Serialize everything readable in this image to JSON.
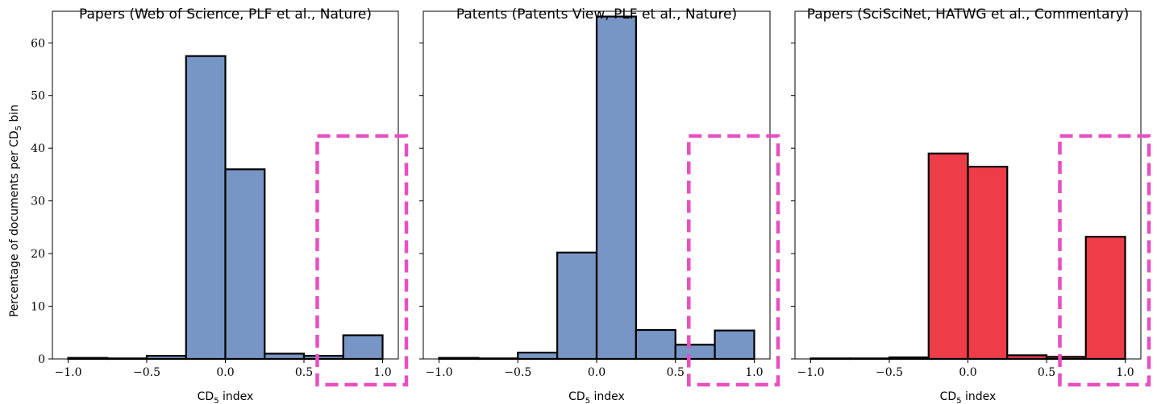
{
  "figure": {
    "ylabel": "Percentage of documents per CD",
    "ylabel_sub": "5",
    "ylabel_tail": " bin",
    "xlabel": "CD",
    "xlabel_sub": "5",
    "xlabel_tail": " index"
  },
  "chart_data": [
    {
      "type": "bar",
      "title": "Papers (Web of Science, PLF et al., Nature)",
      "bin_edges": [
        -1.0,
        -0.75,
        -0.5,
        -0.25,
        0.0,
        0.25,
        0.5,
        0.75,
        1.0
      ],
      "values": [
        0.2,
        0.1,
        0.6,
        57.5,
        36.0,
        1.0,
        0.6,
        4.5
      ],
      "color": "#7896c5",
      "xlim": [
        -1.1,
        1.1
      ],
      "ylim": [
        0,
        66
      ],
      "xticks": [
        -1.0,
        -0.5,
        0.0,
        0.5,
        1.0
      ],
      "xtick_labels": [
        "−1.0",
        "−0.5",
        "0.0",
        "0.5",
        "1.0"
      ],
      "yticks": [
        0,
        10,
        20,
        30,
        40,
        50,
        60
      ],
      "ytick_labels": [
        "0",
        "10",
        "20",
        "30",
        "40",
        "50",
        "60"
      ],
      "highlight": {
        "x_from": 0.6,
        "color": "#e84fc0"
      }
    },
    {
      "type": "bar",
      "title": "Patents (Patents View, PLF et al., Nature)",
      "bin_edges": [
        -1.0,
        -0.75,
        -0.5,
        -0.25,
        0.0,
        0.25,
        0.5,
        0.75,
        1.0
      ],
      "values": [
        0.2,
        0.1,
        1.2,
        20.2,
        65.0,
        5.5,
        2.7,
        5.4
      ],
      "color": "#7896c5",
      "xlim": [
        -1.1,
        1.1
      ],
      "ylim": [
        0,
        66
      ],
      "xticks": [
        -1.0,
        -0.5,
        0.0,
        0.5,
        1.0
      ],
      "xtick_labels": [
        "−1.0",
        "−0.5",
        "0.0",
        "0.5",
        "1.0"
      ],
      "yticks": [
        0,
        10,
        20,
        30,
        40,
        50,
        60
      ],
      "ytick_labels": [],
      "highlight": {
        "x_from": 0.6,
        "color": "#e84fc0"
      }
    },
    {
      "type": "bar",
      "title": "Papers (SciSciNet, HATWG et al., Commentary)",
      "bin_edges": [
        -1.0,
        -0.75,
        -0.5,
        -0.25,
        0.0,
        0.25,
        0.5,
        0.75,
        1.0
      ],
      "values": [
        0.1,
        0.1,
        0.3,
        39.0,
        36.5,
        0.7,
        0.4,
        23.2
      ],
      "color": "#ec3d49",
      "xlim": [
        -1.1,
        1.1
      ],
      "ylim": [
        0,
        66
      ],
      "xticks": [
        -1.0,
        -0.5,
        0.0,
        0.5,
        1.0
      ],
      "xtick_labels": [
        "−1.0",
        "−0.5",
        "0.0",
        "0.5",
        "1.0"
      ],
      "yticks": [
        0,
        10,
        20,
        30,
        40,
        50,
        60
      ],
      "ytick_labels": [],
      "highlight": {
        "x_from": 0.6,
        "color": "#e84fc0"
      }
    }
  ]
}
